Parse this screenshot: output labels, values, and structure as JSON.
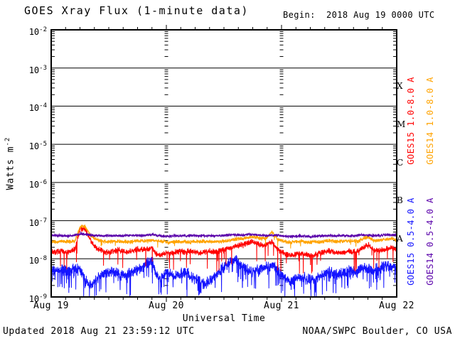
{
  "header": {
    "title": "GOES Xray Flux (1-minute data)",
    "begin": "Begin:  2018 Aug 19 0000 UTC"
  },
  "footer": {
    "updated": "Updated 2018 Aug 21 23:59:12 UTC",
    "source": "NOAA/SWPC Boulder, CO USA"
  },
  "chart_data": {
    "type": "line",
    "title": "GOES Xray Flux (1-minute data)",
    "xlabel": "Universal Time",
    "ylabel_base": "Watts m",
    "ylabel_exp": "-2",
    "x_ticks": [
      "Aug 19",
      "Aug 20",
      "Aug 21",
      "Aug 22"
    ],
    "x_range_hours": 72,
    "minor_x_tick_hours": 3,
    "y_scale": "log",
    "y_tick_exponents": [
      -2,
      -3,
      -4,
      -5,
      -6,
      -7,
      -8,
      -9
    ],
    "ylim": [
      1e-09,
      0.01
    ],
    "grid": "horizontal solid per decade, dotted vertical at day boundaries",
    "flare_classes": [
      {
        "label": "X",
        "log_mid": -3.5
      },
      {
        "label": "M",
        "log_mid": -4.5
      },
      {
        "label": "C",
        "log_mid": -5.5
      },
      {
        "label": "B",
        "log_mid": -6.5
      },
      {
        "label": "A",
        "log_mid": -7.5
      }
    ],
    "series": [
      {
        "name": "GOES15 0.5-4.0 A",
        "color": "#1414FF",
        "noise_log10": 0.17,
        "spike_prob": 0.07,
        "spike_depth": 0.55,
        "hourly_flux": [
          5.5e-09,
          5e-09,
          5.2e-09,
          4.8e-09,
          5e-09,
          5.5e-09,
          5e-09,
          3e-09,
          2e-09,
          2.5e-09,
          3.5e-09,
          4e-09,
          4.5e-09,
          5e-09,
          4e-09,
          3.5e-09,
          4e-09,
          4.5e-09,
          5e-09,
          6e-09,
          8e-09,
          9.5e-09,
          3.5e-09,
          3e-09,
          4.5e-09,
          4e-09,
          3.5e-09,
          4e-09,
          4.5e-09,
          3.5e-09,
          3e-09,
          2.5e-09,
          2e-09,
          2.5e-09,
          3.5e-09,
          4.5e-09,
          6e-09,
          8e-09,
          9.5e-09,
          8.5e-09,
          6e-09,
          5e-09,
          4.5e-09,
          5e-09,
          5.5e-09,
          6e-09,
          7e-09,
          5.5e-09,
          4e-09,
          3e-09,
          2.5e-09,
          3e-09,
          3.5e-09,
          3e-09,
          2.8e-09,
          3e-09,
          3.5e-09,
          4e-09,
          4.5e-09,
          4e-09,
          3.8e-09,
          4.2e-09,
          4.8e-09,
          4.5e-09,
          5e-09,
          6e-09,
          5.5e-09,
          5e-09,
          5.5e-09,
          6e-09,
          6.5e-09,
          6e-09,
          5.8e-09
        ]
      },
      {
        "name": "GOES15 1.0-8.0 A",
        "color": "#FF0000",
        "noise_log10": 0.09,
        "spike_prob": 0.025,
        "spike_depth": 0.5,
        "hourly_flux": [
          1.6e-08,
          1.5e-08,
          1.6e-08,
          1.5e-08,
          1.6e-08,
          1.8e-08,
          5.8e-08,
          6.4e-08,
          3.4e-08,
          2.2e-08,
          1.7e-08,
          1.5e-08,
          1.5e-08,
          1.6e-08,
          1.7e-08,
          1.6e-08,
          1.5e-08,
          1.6e-08,
          1.8e-08,
          1.7e-08,
          1.8e-08,
          1.9e-08,
          1.3e-08,
          1.3e-08,
          1.4e-08,
          1.4e-08,
          1.5e-08,
          1.6e-08,
          1.5e-08,
          1.6e-08,
          1.5e-08,
          1.4e-08,
          1.5e-08,
          1.6e-08,
          1.5e-08,
          1.6e-08,
          1.7e-08,
          1.9e-08,
          2.1e-08,
          2.2e-08,
          2.3e-08,
          2.6e-08,
          2.8e-08,
          2.5e-08,
          2.2e-08,
          2.4e-08,
          2.8e-08,
          1.8e-08,
          1.5e-08,
          1.3e-08,
          1.2e-08,
          1.3e-08,
          1.4e-08,
          1.3e-08,
          1.2e-08,
          1.3e-08,
          1.4e-08,
          1.5e-08,
          1.6e-08,
          1.5e-08,
          1.4e-08,
          1.5e-08,
          1.6e-08,
          1.5e-08,
          1.6e-08,
          2e-08,
          2.3e-08,
          1.8e-08,
          1.6e-08,
          1.7e-08,
          1.9e-08,
          2e-08,
          1.8e-08
        ]
      },
      {
        "name": "GOES14 1.0-8.0 A",
        "color": "#FFA300",
        "noise_log10": 0.06,
        "spike_prob": 0.008,
        "spike_depth": 0.2,
        "hourly_flux": [
          2.8e-08,
          2.8e-08,
          2.9e-08,
          2.8e-08,
          2.8e-08,
          3e-08,
          6.8e-08,
          7.2e-08,
          4.4e-08,
          3.4e-08,
          3e-08,
          2.9e-08,
          2.8e-08,
          2.8e-08,
          2.9e-08,
          2.8e-08,
          2.8e-08,
          2.9e-08,
          3e-08,
          2.9e-08,
          3e-08,
          3.1e-08,
          2.9e-08,
          2.8e-08,
          2.7e-08,
          2.7e-08,
          2.8e-08,
          2.8e-08,
          2.8e-08,
          2.8e-08,
          2.8e-08,
          2.9e-08,
          2.8e-08,
          2.8e-08,
          2.9e-08,
          2.8e-08,
          2.9e-08,
          3e-08,
          3.2e-08,
          3.3e-08,
          3.4e-08,
          3.6e-08,
          3.8e-08,
          3.6e-08,
          3.3e-08,
          3.6e-08,
          5.2e-08,
          3.4e-08,
          3e-08,
          2.8e-08,
          2.7e-08,
          2.8e-08,
          2.9e-08,
          2.8e-08,
          2.7e-08,
          2.8e-08,
          2.8e-08,
          2.9e-08,
          3e-08,
          2.9e-08,
          2.8e-08,
          2.9e-08,
          3e-08,
          2.9e-08,
          2.9e-08,
          3.4e-08,
          3.8e-08,
          3.1e-08,
          3e-08,
          3.1e-08,
          3.3e-08,
          3.4e-08,
          3.1e-08
        ]
      },
      {
        "name": "GOES14 0.5-4.0 A",
        "color": "#5A00AA",
        "noise_log10": 0.045,
        "spike_prob": 0.0,
        "spike_depth": 0.0,
        "hourly_flux": [
          4e-08,
          4e-08,
          4.1e-08,
          4e-08,
          4e-08,
          4.2e-08,
          4.5e-08,
          4.4e-08,
          4.2e-08,
          4.1e-08,
          4e-08,
          4e-08,
          4e-08,
          4.1e-08,
          4e-08,
          4e-08,
          4.1e-08,
          4.2e-08,
          4.1e-08,
          4e-08,
          4.2e-08,
          4.3e-08,
          4.1e-08,
          4e-08,
          3.9e-08,
          3.9e-08,
          4e-08,
          4e-08,
          4e-08,
          4.1e-08,
          4e-08,
          4e-08,
          4e-08,
          4.1e-08,
          4e-08,
          4e-08,
          4.1e-08,
          4.2e-08,
          4.3e-08,
          4.2e-08,
          4.2e-08,
          4.3e-08,
          4.4e-08,
          4.2e-08,
          4.1e-08,
          4e-08,
          4.2e-08,
          4.1e-08,
          4e-08,
          3.9e-08,
          3.8e-08,
          3.9e-08,
          4e-08,
          3.9e-08,
          3.8e-08,
          3.9e-08,
          4e-08,
          4e-08,
          4.1e-08,
          4e-08,
          4e-08,
          4.1e-08,
          4e-08,
          4e-08,
          4.1e-08,
          4.2e-08,
          4.1e-08,
          4e-08,
          4.1e-08,
          4.2e-08,
          4.3e-08,
          4.2e-08,
          4.2e-08
        ]
      }
    ],
    "legend_note": "red=GOES15 long, orange=GOES14 long, blue=GOES15 short, purple=GOES14 short; labels rotated 90deg on right side"
  }
}
